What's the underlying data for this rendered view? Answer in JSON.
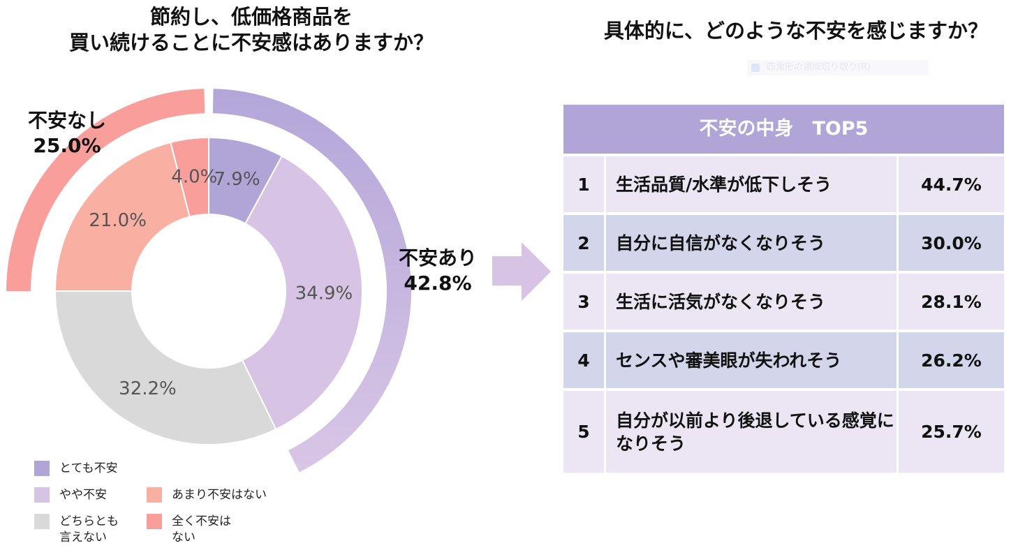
{
  "left_title": {
    "line1": "節約し、低価格商品を",
    "line2": "買い続けることに不安感はありますか？"
  },
  "right_title": "具体的に、どのような不安を感じますか？",
  "faint_ui_text": "四角形の領域切り取り(R)",
  "outer_labels": {
    "not_anxious": {
      "name": "不安なし",
      "value": "25.0%"
    },
    "anxious": {
      "name": "不安あり",
      "value": "42.8%"
    }
  },
  "colors": {
    "very_anxious": "#b1a5d8",
    "somewhat_anxious": "#d7c3e3",
    "neutral": "#d9d9d9",
    "not_very_anxious": "#f9b0a3",
    "not_at_all": "#fa9e9c",
    "arrow": "#d7c3e3",
    "table_header": "#b1a5d8"
  },
  "chart_data": {
    "type": "donut",
    "inner_ring": {
      "categories": [
        "とても不安",
        "やや不安",
        "どちらとも言えない",
        "あまり不安はない",
        "全く不安はない"
      ],
      "values": [
        7.9,
        34.9,
        32.2,
        21.0,
        4.0
      ],
      "labels": [
        "7.9%",
        "34.9%",
        "32.2%",
        "21.0%",
        "4.0%"
      ]
    },
    "outer_ring": {
      "categories": [
        "不安あり",
        "不安なし"
      ],
      "values": [
        42.8,
        25.0
      ],
      "labels": [
        "42.8%",
        "25.0%"
      ]
    }
  },
  "legend": [
    {
      "label": "とても不安",
      "color": "#b1a5d8"
    },
    {
      "label": "やや不安",
      "color": "#d7c3e3"
    },
    {
      "label": "あまり不安はない",
      "color": "#f9b0a3"
    },
    {
      "label": "どちらとも\n言えない",
      "color": "#d9d9d9"
    },
    {
      "label": "全く不安は\nない",
      "color": "#fa9e9c"
    }
  ],
  "table": {
    "header": "不安の中身　TOP5",
    "rows": [
      {
        "rank": "1",
        "item": "生活品質/水準が低下しそう",
        "value": "44.7%"
      },
      {
        "rank": "2",
        "item": "自分に自信がなくなりそう",
        "value": "30.0%"
      },
      {
        "rank": "3",
        "item": "生活に活気がなくなりそう",
        "value": "28.1%"
      },
      {
        "rank": "4",
        "item": "センスや審美眼が失われそう",
        "value": "26.2%"
      },
      {
        "rank": "5",
        "item": "自分が以前より後退している感覚になりそう",
        "value": "25.7%"
      }
    ]
  }
}
